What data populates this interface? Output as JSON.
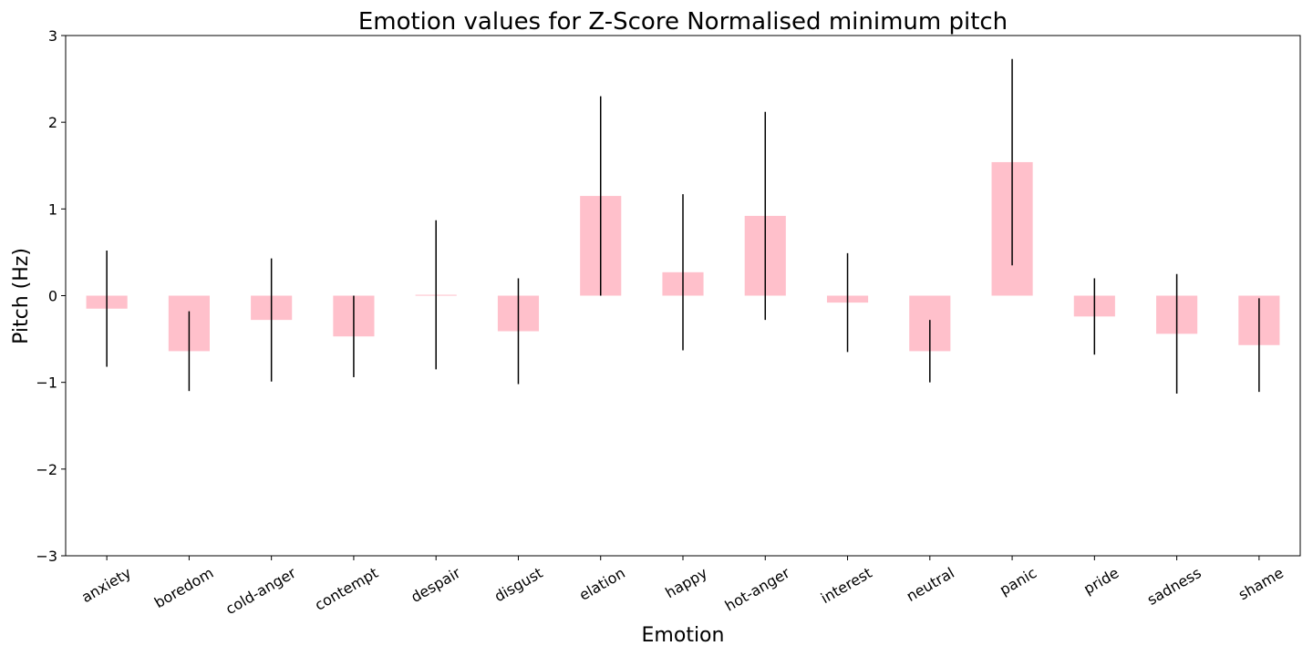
{
  "chart_data": {
    "type": "bar",
    "title": "Emotion values for Z-Score Normalised minimum pitch",
    "xlabel": "Emotion",
    "ylabel": "Pitch (Hz)",
    "ylim": [
      -3,
      3
    ],
    "yticks": [
      -3,
      -2,
      -1,
      0,
      1,
      2,
      3
    ],
    "ytick_labels": [
      "−3",
      "−2",
      "−1",
      "0",
      "1",
      "2",
      "3"
    ],
    "categories": [
      "anxiety",
      "boredom",
      "cold-anger",
      "contempt",
      "despair",
      "disgust",
      "elation",
      "happy",
      "hot-anger",
      "interest",
      "neutral",
      "panic",
      "pride",
      "sadness",
      "shame"
    ],
    "values": [
      -0.15,
      -0.64,
      -0.28,
      -0.47,
      0.01,
      -0.41,
      1.15,
      0.27,
      0.92,
      -0.08,
      -0.64,
      1.54,
      -0.24,
      -0.44,
      -0.57
    ],
    "error": [
      0.67,
      0.46,
      0.71,
      0.47,
      0.86,
      0.61,
      1.15,
      0.9,
      1.2,
      0.57,
      0.36,
      1.19,
      0.44,
      0.69,
      0.54
    ],
    "bar_color": "#ffc0cb",
    "error_color": "#000000",
    "grid": false,
    "legend": "none"
  }
}
